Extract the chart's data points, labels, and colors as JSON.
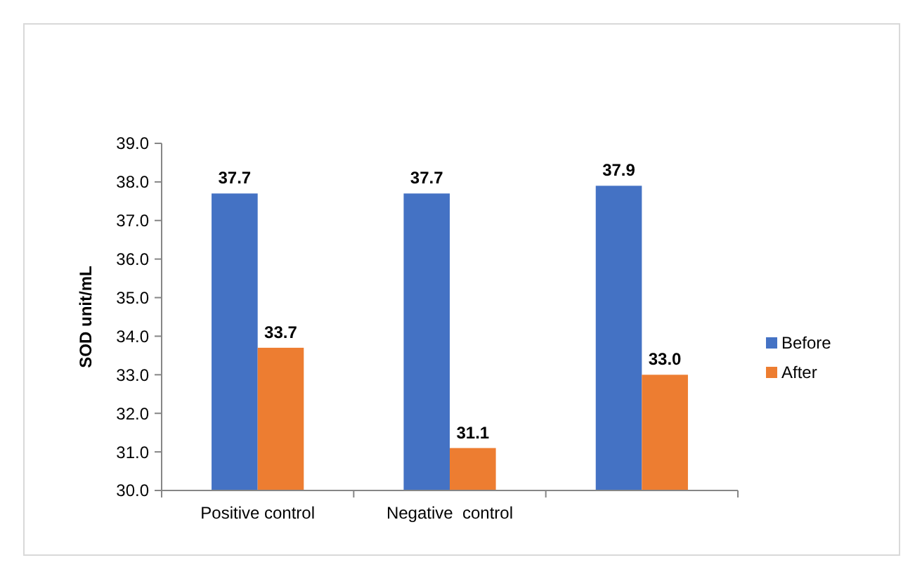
{
  "chart_data": {
    "type": "bar",
    "ylabel": "SOD unit/mL",
    "categories": [
      "Positive control",
      "Negative  control",
      null
    ],
    "series": [
      {
        "name": "Before",
        "color": "#4472c4",
        "values": [
          37.7,
          37.7,
          37.9
        ],
        "value_labels": [
          "37.7",
          "37.7",
          "37.9"
        ]
      },
      {
        "name": "After",
        "color": "#ed7d31",
        "values": [
          33.7,
          31.1,
          33.0
        ],
        "value_labels": [
          "33.7",
          "31.1",
          "33.0"
        ]
      }
    ],
    "ylim": [
      30,
      39
    ],
    "yticks": [
      {
        "value": 30,
        "label": "30.0"
      },
      {
        "value": 31,
        "label": "31.0"
      },
      {
        "value": 32,
        "label": "32.0"
      },
      {
        "value": 33,
        "label": "33.0"
      },
      {
        "value": 34,
        "label": "34.0"
      },
      {
        "value": 35,
        "label": "35.0"
      },
      {
        "value": 36,
        "label": "36.0"
      },
      {
        "value": 37,
        "label": "37.0"
      },
      {
        "value": 38,
        "label": "38.0"
      },
      {
        "value": 39,
        "label": "39.0"
      }
    ],
    "grid": false,
    "legend": "right"
  }
}
